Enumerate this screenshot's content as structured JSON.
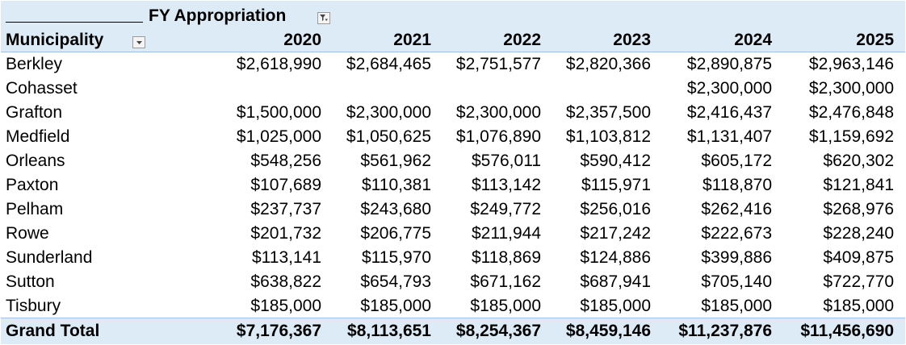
{
  "pivot": {
    "column_field_label": "FY Appropriation",
    "row_field_label": "Municipality",
    "filter_icon": "filter-icon",
    "dropdown_icon": "dropdown-arrow-icon",
    "years": [
      "2020",
      "2021",
      "2022",
      "2023",
      "2024",
      "2025"
    ],
    "rows": [
      {
        "name": "Berkley",
        "values": [
          "$2,618,990",
          "$2,684,465",
          "$2,751,577",
          "$2,820,366",
          "$2,890,875",
          "$2,963,146"
        ]
      },
      {
        "name": "Cohasset",
        "values": [
          "",
          "",
          "",
          "",
          "$2,300,000",
          "$2,300,000"
        ]
      },
      {
        "name": "Grafton",
        "values": [
          "$1,500,000",
          "$2,300,000",
          "$2,300,000",
          "$2,357,500",
          "$2,416,437",
          "$2,476,848"
        ]
      },
      {
        "name": "Medfield",
        "values": [
          "$1,025,000",
          "$1,050,625",
          "$1,076,890",
          "$1,103,812",
          "$1,131,407",
          "$1,159,692"
        ]
      },
      {
        "name": "Orleans",
        "values": [
          "$548,256",
          "$561,962",
          "$576,011",
          "$590,412",
          "$605,172",
          "$620,302"
        ]
      },
      {
        "name": "Paxton",
        "values": [
          "$107,689",
          "$110,381",
          "$113,142",
          "$115,971",
          "$118,870",
          "$121,841"
        ]
      },
      {
        "name": "Pelham",
        "values": [
          "$237,737",
          "$243,680",
          "$249,772",
          "$256,016",
          "$262,416",
          "$268,976"
        ]
      },
      {
        "name": "Rowe",
        "values": [
          "$201,732",
          "$206,775",
          "$211,944",
          "$217,242",
          "$222,673",
          "$228,240"
        ]
      },
      {
        "name": "Sunderland",
        "values": [
          "$113,141",
          "$115,970",
          "$118,869",
          "$124,886",
          "$399,886",
          "$409,875"
        ]
      },
      {
        "name": "Sutton",
        "values": [
          "$638,822",
          "$654,793",
          "$671,162",
          "$687,941",
          "$705,140",
          "$722,770"
        ]
      },
      {
        "name": "Tisbury",
        "values": [
          "$185,000",
          "$185,000",
          "$185,000",
          "$185,000",
          "$185,000",
          "$185,000"
        ]
      }
    ],
    "grand_total": {
      "name": "Grand Total",
      "values": [
        "$7,176,367",
        "$8,113,651",
        "$8,254,367",
        "$8,459,146",
        "$11,237,876",
        "$11,456,690"
      ]
    }
  },
  "colors": {
    "header_band": "#ddebf7",
    "header_rule": "#9bc2e6",
    "text": "#000000"
  }
}
